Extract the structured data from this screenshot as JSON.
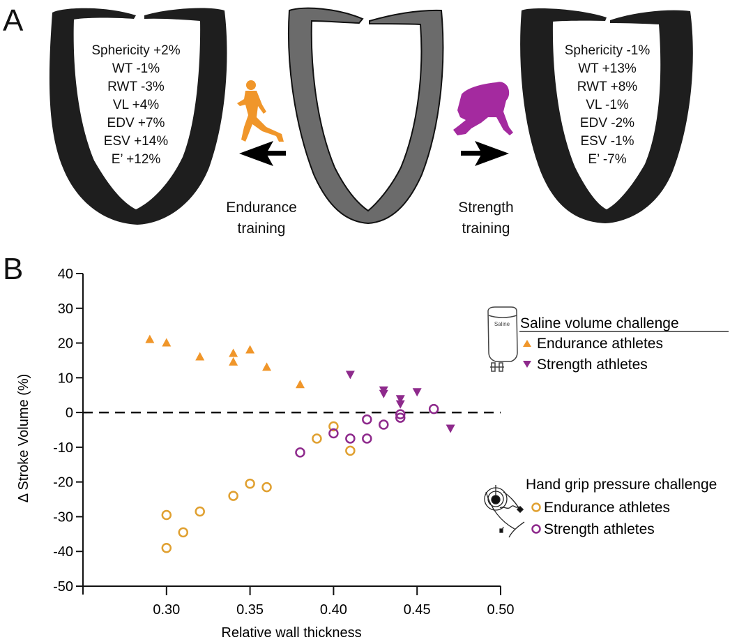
{
  "panel_a": {
    "label": "A",
    "left_heart": {
      "name": "Endurance-trained heart",
      "stats": [
        "Sphericity +2%",
        "WT -1%",
        "RWT -3%",
        "VL +4%",
        "EDV +7%",
        "ESV +14%",
        "E’ +12%"
      ]
    },
    "center_heart": {
      "name": "Untrained heart"
    },
    "right_heart": {
      "name": "Strength-trained heart",
      "stats": [
        "Sphericity -1%",
        "WT +13%",
        "RWT +8%",
        "VL -1%",
        "EDV -2%",
        "ESV -1%",
        "E’ -7%"
      ]
    },
    "endurance_caption": [
      "Endurance",
      "training"
    ],
    "strength_caption": [
      "Strength",
      "training"
    ],
    "icons": {
      "endurance": "runner-icon",
      "strength": "football-lineman-icon",
      "left_arrow": "arrow-left-icon",
      "right_arrow": "arrow-right-icon"
    }
  },
  "colors": {
    "endurance": "#F0962A",
    "strength": "#8E2A8C",
    "heart_dark": "#1e1e1e",
    "heart_gray": "#6b6b6b"
  },
  "chart_data": {
    "panel_label": "B",
    "type": "scatter",
    "title": "",
    "xlabel": "Relative wall thickness",
    "ylabel": "Δ Stroke Volume (%)",
    "xlim": [
      0.25,
      0.5
    ],
    "ylim": [
      -50,
      40
    ],
    "xticks": [
      0.3,
      0.35,
      0.4,
      0.45,
      0.5
    ],
    "xtick_labels": [
      "0.30",
      "0.35",
      "0.40",
      "0.45",
      "0.50"
    ],
    "yticks": [
      40,
      30,
      20,
      10,
      0,
      -10,
      -20,
      -30,
      -40,
      -50
    ],
    "ytick_labels": [
      "40",
      "30",
      "20",
      "10",
      "0",
      "-10",
      "-20",
      "-30",
      "-40",
      "-50"
    ],
    "grid": false,
    "reference_line": {
      "y": 0,
      "style": "dashed"
    },
    "legend_groups": [
      {
        "title": "Saline volume challenge",
        "icon": "saline-bag-icon",
        "icon_text": "Saline",
        "placement": "right-upper",
        "entries": [
          {
            "label": "Endurance athletes",
            "series": "saline_endurance"
          },
          {
            "label": "Strength athletes",
            "series": "saline_strength"
          }
        ]
      },
      {
        "title": "Hand grip pressure challenge",
        "icon": "hand-grip-dynamometer-icon",
        "placement": "right-lower",
        "entries": [
          {
            "label": "Endurance athletes",
            "series": "grip_endurance"
          },
          {
            "label": "Strength athletes",
            "series": "grip_strength"
          }
        ]
      }
    ],
    "series": [
      {
        "id": "saline_endurance",
        "name": "Saline volume challenge – Endurance athletes",
        "marker": "triangle-up",
        "color": "#F0962A",
        "points": [
          [
            0.29,
            21
          ],
          [
            0.3,
            20
          ],
          [
            0.32,
            16
          ],
          [
            0.34,
            17
          ],
          [
            0.34,
            14.5
          ],
          [
            0.35,
            18
          ],
          [
            0.36,
            13
          ],
          [
            0.38,
            8
          ]
        ]
      },
      {
        "id": "saline_strength",
        "name": "Saline volume challenge – Strength athletes",
        "marker": "triangle-down",
        "color": "#8E2A8C",
        "points": [
          [
            0.41,
            11
          ],
          [
            0.43,
            6.5
          ],
          [
            0.43,
            5.5
          ],
          [
            0.44,
            4
          ],
          [
            0.44,
            2.5
          ],
          [
            0.45,
            6
          ],
          [
            0.47,
            -4.5
          ]
        ]
      },
      {
        "id": "grip_endurance",
        "name": "Hand grip pressure challenge – Endurance athletes",
        "marker": "circle-open",
        "color": "#E0A030",
        "points": [
          [
            0.3,
            -29.5
          ],
          [
            0.3,
            -39
          ],
          [
            0.31,
            -34.5
          ],
          [
            0.32,
            -28.5
          ],
          [
            0.34,
            -24
          ],
          [
            0.35,
            -20.5
          ],
          [
            0.36,
            -21.5
          ],
          [
            0.39,
            -7.5
          ],
          [
            0.4,
            -4
          ],
          [
            0.41,
            -11
          ]
        ]
      },
      {
        "id": "grip_strength",
        "name": "Hand grip pressure challenge – Strength athletes",
        "marker": "circle-open",
        "color": "#8E2A8C",
        "points": [
          [
            0.38,
            -11.5
          ],
          [
            0.4,
            -6
          ],
          [
            0.41,
            -7.5
          ],
          [
            0.42,
            -2
          ],
          [
            0.42,
            -7.5
          ],
          [
            0.43,
            -3.5
          ],
          [
            0.44,
            -0.5
          ],
          [
            0.44,
            -1.5
          ],
          [
            0.46,
            1
          ]
        ]
      }
    ]
  }
}
